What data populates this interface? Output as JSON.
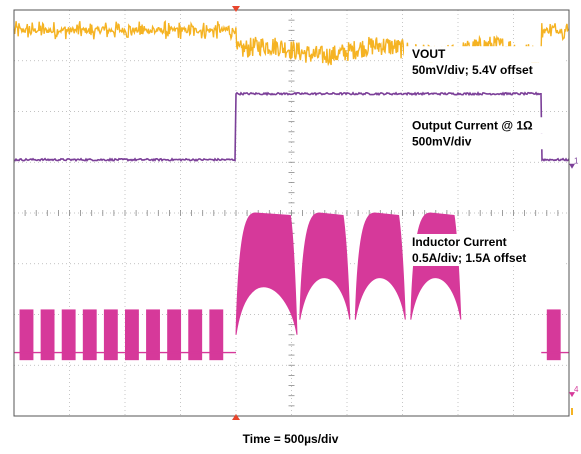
{
  "chart_data": {
    "type": "line",
    "title": "",
    "xlabel": "Time = 500µs/div",
    "ylabel": "",
    "grid": true,
    "divisions": {
      "x": 10,
      "y": 8
    },
    "trigger_start_div": 4.0,
    "trigger_end_div": 9.5,
    "series": [
      {
        "name": "VOUT",
        "color": "#f5b323",
        "labels": [
          "VOUT",
          "50mV/div; 5.4V offset"
        ],
        "level_before_div": 7.6,
        "level_during_div": 7.2,
        "level_after_div": 7.6,
        "noise_div": 0.15
      },
      {
        "name": "Output Current @ 1Ω",
        "color": "#7b3f98",
        "labels": [
          "Output Current @ 1Ω",
          "500mV/div"
        ],
        "level_low_div": 5.05,
        "level_high_div": 6.35,
        "marker": "1"
      },
      {
        "name": "Inductor Current",
        "color": "#d6399a",
        "labels": [
          "Inductor Current",
          "0.5A/div; 1.5A offset"
        ],
        "low_burst_min_div": 1.1,
        "low_burst_max_div": 2.1,
        "high_peak_div": 4.0,
        "high_dip_div": 1.9,
        "marker": "4"
      }
    ]
  }
}
